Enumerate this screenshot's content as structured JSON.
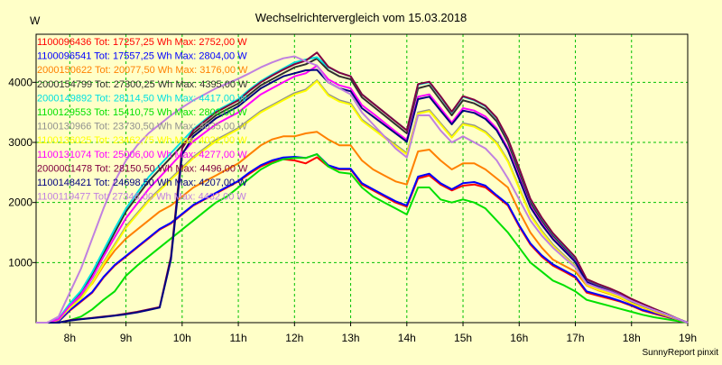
{
  "chart_data": {
    "type": "line",
    "title": "Wechselrichtervergleich vom 15.03.2018",
    "ylabel": "W",
    "xlabel": "",
    "credit": "SunnyReport pinxit",
    "xlim": [
      7.4,
      19.0
    ],
    "ylim": [
      0,
      4800
    ],
    "x_ticks": [
      8,
      9,
      10,
      11,
      12,
      13,
      14,
      15,
      16,
      17,
      18,
      19
    ],
    "x_tick_labels": [
      "8h",
      "9h",
      "10h",
      "11h",
      "12h",
      "13h",
      "14h",
      "15h",
      "16h",
      "17h",
      "18h",
      "19h"
    ],
    "y_ticks": [
      1000,
      2000,
      3000,
      4000
    ],
    "y_tick_labels": [
      "1000",
      "2000",
      "3000",
      "4000"
    ],
    "grid": true,
    "legend_placement": "top-left",
    "x": [
      7.4,
      7.6,
      7.8,
      8.0,
      8.2,
      8.4,
      8.6,
      8.8,
      9.0,
      9.2,
      9.4,
      9.6,
      9.8,
      10.0,
      10.2,
      10.4,
      10.6,
      10.8,
      11.0,
      11.2,
      11.4,
      11.6,
      11.8,
      12.0,
      12.2,
      12.4,
      12.6,
      12.8,
      13.0,
      13.2,
      13.4,
      13.6,
      13.8,
      14.0,
      14.2,
      14.4,
      14.6,
      14.8,
      15.0,
      15.2,
      15.4,
      15.6,
      15.8,
      16.0,
      16.2,
      16.4,
      16.6,
      16.8,
      17.0,
      17.2,
      17.4,
      17.6,
      17.8,
      18.0,
      18.2,
      18.4,
      18.6,
      18.8,
      19.0
    ],
    "series": [
      {
        "name": "1100096436",
        "label": "1100096436 Tot: 17257,25 Wh Max: 2752,00 W",
        "color": "#ff0000",
        "values": [
          0,
          0,
          20,
          200,
          350,
          500,
          750,
          950,
          1100,
          1250,
          1400,
          1550,
          1650,
          1800,
          1950,
          2050,
          2150,
          2250,
          2350,
          2480,
          2600,
          2680,
          2720,
          2700,
          2650,
          2752,
          2600,
          2550,
          2550,
          2300,
          2200,
          2100,
          2000,
          1930,
          2400,
          2450,
          2300,
          2200,
          2280,
          2300,
          2250,
          2100,
          1950,
          1600,
          1300,
          1100,
          950,
          850,
          750,
          500,
          450,
          400,
          350,
          280,
          200,
          150,
          100,
          50,
          0
        ]
      },
      {
        "name": "1100096541",
        "label": "1100096541 Tot: 17557,25 Wh Max: 2804,00 W",
        "color": "#0000ff",
        "values": [
          0,
          0,
          20,
          210,
          360,
          510,
          760,
          960,
          1110,
          1260,
          1410,
          1560,
          1660,
          1810,
          1960,
          2060,
          2160,
          2260,
          2360,
          2500,
          2620,
          2700,
          2750,
          2760,
          2740,
          2804,
          2620,
          2560,
          2560,
          2320,
          2220,
          2120,
          2020,
          1950,
          2430,
          2480,
          2320,
          2220,
          2320,
          2340,
          2280,
          2120,
          1970,
          1620,
          1320,
          1120,
          970,
          870,
          770,
          520,
          470,
          420,
          360,
          290,
          210,
          160,
          110,
          50,
          0
        ]
      },
      {
        "name": "2000150622",
        "label": "2000150622 Tot: 20077,50 Wh Max: 3176,00 W",
        "color": "#ff8000",
        "values": [
          0,
          0,
          40,
          260,
          450,
          650,
          950,
          1200,
          1400,
          1550,
          1700,
          1850,
          1950,
          2100,
          2250,
          2350,
          2450,
          2550,
          2650,
          2800,
          2950,
          3050,
          3100,
          3100,
          3150,
          3176,
          3050,
          2950,
          2950,
          2700,
          2550,
          2450,
          2350,
          2300,
          2850,
          2880,
          2700,
          2550,
          2650,
          2650,
          2550,
          2400,
          2250,
          1850,
          1500,
          1250,
          1050,
          950,
          850,
          620,
          540,
          480,
          410,
          320,
          250,
          180,
          120,
          60,
          0
        ]
      },
      {
        "name": "2000154799",
        "label": "2000154799 Tot: 27300,25 Wh Max: 4395,00 W",
        "color": "#303030",
        "values": [
          0,
          0,
          60,
          300,
          500,
          800,
          1150,
          1500,
          1850,
          2100,
          2350,
          2550,
          2750,
          2950,
          3150,
          3300,
          3450,
          3550,
          3650,
          3800,
          3950,
          4050,
          4150,
          4250,
          4300,
          4395,
          4200,
          4100,
          4050,
          3750,
          3600,
          3450,
          3300,
          3150,
          3900,
          3950,
          3700,
          3450,
          3700,
          3650,
          3550,
          3350,
          3000,
          2500,
          2000,
          1700,
          1450,
          1250,
          1050,
          700,
          620,
          550,
          480,
          380,
          300,
          220,
          150,
          70,
          0
        ]
      },
      {
        "name": "2000149892",
        "label": "2000149892 Tot: 28114,50 Wh Max: 4417,00 W",
        "color": "#00e0e0",
        "values": [
          0,
          0,
          60,
          320,
          530,
          840,
          1200,
          1560,
          1900,
          2160,
          2420,
          2620,
          2820,
          3020,
          3220,
          3370,
          3520,
          3620,
          3720,
          3880,
          4020,
          4130,
          4230,
          4330,
          4380,
          4417,
          4250,
          4160,
          4100,
          3800,
          3650,
          3500,
          3350,
          3200,
          3960,
          4000,
          3760,
          3500,
          3760,
          3700,
          3600,
          3400,
          3050,
          2560,
          2050,
          1740,
          1480,
          1280,
          1080,
          720,
          640,
          570,
          490,
          390,
          310,
          230,
          155,
          72,
          0
        ]
      },
      {
        "name": "1100129553",
        "label": "1100129553 Tot: 15410,75 Wh Max: 2803,00 W",
        "color": "#00e000",
        "values": [
          0,
          0,
          0,
          40,
          100,
          220,
          380,
          520,
          780,
          950,
          1100,
          1250,
          1400,
          1550,
          1700,
          1850,
          2000,
          2100,
          2250,
          2400,
          2550,
          2650,
          2720,
          2740,
          2740,
          2803,
          2600,
          2500,
          2480,
          2250,
          2100,
          2000,
          1900,
          1800,
          2250,
          2250,
          2050,
          2000,
          2050,
          2000,
          1900,
          1700,
          1500,
          1250,
          1000,
          850,
          700,
          620,
          520,
          380,
          330,
          280,
          230,
          180,
          130,
          90,
          60,
          30,
          0
        ]
      },
      {
        "name": "1100130966",
        "label": "1100130966 Tot: 23730,50 Wh Max: 4035,00 W",
        "color": "#909090",
        "values": [
          0,
          0,
          50,
          250,
          420,
          680,
          1000,
          1300,
          1600,
          1820,
          2040,
          2220,
          2400,
          2580,
          2760,
          2900,
          3040,
          3140,
          3240,
          3380,
          3520,
          3620,
          3720,
          3820,
          3880,
          4035,
          3800,
          3700,
          3650,
          3380,
          3240,
          3100,
          2960,
          2820,
          3500,
          3540,
          3320,
          3100,
          3320,
          3280,
          3180,
          3000,
          2700,
          2250,
          1800,
          1530,
          1300,
          1120,
          950,
          640,
          560,
          500,
          430,
          340,
          270,
          200,
          135,
          65,
          0
        ]
      },
      {
        "name": "1100136025",
        "label": "1100136025 Tot: 23462,75 Wh Max: 4021,00 W",
        "color": "#ffff00",
        "values": [
          0,
          0,
          50,
          240,
          400,
          660,
          980,
          1280,
          1580,
          1800,
          2020,
          2200,
          2380,
          2560,
          2740,
          2880,
          3020,
          3120,
          3220,
          3360,
          3500,
          3600,
          3700,
          3800,
          3860,
          4021,
          3780,
          3680,
          3630,
          3360,
          3220,
          3080,
          2940,
          2800,
          3480,
          3520,
          3300,
          3080,
          3300,
          3260,
          3160,
          2980,
          2680,
          2230,
          1780,
          1510,
          1280,
          1100,
          930,
          630,
          550,
          490,
          420,
          330,
          260,
          190,
          130,
          60,
          0
        ]
      },
      {
        "name": "1100131074",
        "label": "1100131074 Tot: 25006,00 Wh Max: 4277,00 W",
        "color": "#ff00ff",
        "values": [
          0,
          0,
          55,
          280,
          470,
          750,
          1100,
          1420,
          1740,
          1980,
          2220,
          2420,
          2620,
          2820,
          3020,
          3160,
          3300,
          3400,
          3500,
          3650,
          3800,
          3900,
          4000,
          4100,
          4150,
          4277,
          4050,
          3950,
          3900,
          3620,
          3480,
          3330,
          3180,
          3040,
          3760,
          3800,
          3570,
          3330,
          3570,
          3530,
          3430,
          3230,
          2900,
          2420,
          1940,
          1650,
          1400,
          1210,
          1020,
          680,
          600,
          530,
          460,
          360,
          285,
          210,
          145,
          68,
          0
        ]
      },
      {
        "name": "2000001478",
        "label": "2000001478 Tot: 28150,50 Wh Max: 4496,00 W",
        "color": "#800040",
        "values": [
          0,
          0,
          0,
          40,
          60,
          80,
          100,
          120,
          150,
          180,
          220,
          260,
          1100,
          2900,
          3200,
          3350,
          3500,
          3600,
          3700,
          3860,
          4000,
          4110,
          4210,
          4300,
          4360,
          4496,
          4260,
          4160,
          4100,
          3800,
          3650,
          3500,
          3350,
          3200,
          3970,
          4010,
          3770,
          3510,
          3770,
          3710,
          3610,
          3410,
          3060,
          2570,
          2060,
          1750,
          1490,
          1290,
          1090,
          725,
          645,
          575,
          495,
          395,
          312,
          232,
          157,
          73,
          0
        ]
      },
      {
        "name": "1100148421",
        "label": "1100148421 Tot: 24698,50 Wh Max: 4207,00 W",
        "color": "#000080",
        "values": [
          0,
          0,
          0,
          35,
          55,
          75,
          95,
          115,
          140,
          170,
          210,
          250,
          1050,
          2800,
          3100,
          3250,
          3400,
          3500,
          3600,
          3750,
          3900,
          4000,
          4100,
          4150,
          4200,
          4207,
          4000,
          3900,
          3850,
          3570,
          3430,
          3290,
          3150,
          3010,
          3720,
          3760,
          3530,
          3300,
          3530,
          3490,
          3390,
          3200,
          2870,
          2390,
          1920,
          1630,
          1390,
          1200,
          1010,
          675,
          595,
          525,
          455,
          355,
          282,
          208,
          142,
          67,
          0
        ]
      },
      {
        "name": "1100119477",
        "label": "1100119477 Tot: 27346,00 Wh Max: 4432,00 W",
        "color": "#c080e0",
        "values": [
          0,
          0,
          100,
          500,
          900,
          1400,
          1900,
          2350,
          2700,
          2950,
          3150,
          3300,
          3450,
          3580,
          3700,
          3800,
          3900,
          3980,
          4060,
          4150,
          4250,
          4330,
          4400,
          4432,
          4350,
          4280,
          4000,
          3900,
          3800,
          3500,
          3300,
          3100,
          2900,
          2750,
          3450,
          3450,
          3200,
          3000,
          3100,
          3000,
          2900,
          2700,
          2400,
          2050,
          1700,
          1450,
          1250,
          1080,
          920,
          650,
          580,
          520,
          450,
          360,
          285,
          210,
          145,
          70,
          0
        ]
      }
    ]
  }
}
